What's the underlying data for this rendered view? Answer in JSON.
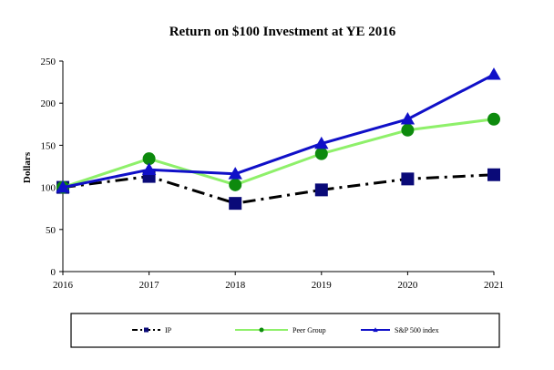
{
  "chart_data": {
    "type": "line",
    "title": "Return on $100 Investment at YE 2016",
    "xlabel": "",
    "ylabel": "Dollars",
    "categories": [
      "2016",
      "2017",
      "2018",
      "2019",
      "2020",
      "2021"
    ],
    "ylim": [
      0,
      250
    ],
    "yticks": [
      "0",
      "50",
      "100",
      "150",
      "200",
      "250"
    ],
    "grid": false,
    "legend_position": "bottom",
    "series": [
      {
        "name": "IP",
        "values": [
          100,
          113,
          81,
          97,
          110,
          115
        ],
        "color": "#000000",
        "marker_color": "#0a0a78",
        "marker": "square",
        "line_style": "dash-dot"
      },
      {
        "name": "Peer Group",
        "values": [
          100,
          134,
          103,
          140,
          168,
          181
        ],
        "color": "#8ef06a",
        "marker_color": "#0d8a0d",
        "marker": "circle",
        "line_style": "solid"
      },
      {
        "name": "S&P 500 index",
        "values": [
          100,
          121,
          116,
          152,
          181,
          234
        ],
        "color": "#1010c8",
        "marker_color": "#1010c8",
        "marker": "triangle",
        "line_style": "solid"
      }
    ]
  }
}
